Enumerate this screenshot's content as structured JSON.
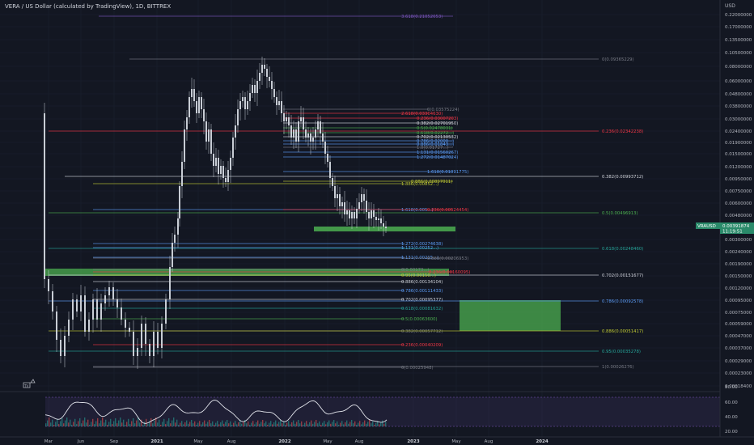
{
  "header": {
    "symbol_title": "VERA / US Dollar (calculated by TradingView), 1D, BITTREX",
    "currency": "USD",
    "ticker_badge": "VRAUSD",
    "last_price": "0.00391874",
    "countdown": "11:19:51",
    "tv_logo": "TV"
  },
  "colors": {
    "background": "#131722",
    "candle": "#c8cdd5",
    "rsi_line": "#e1e3ea",
    "rsi_band": "#7e57c2",
    "zone_green": "#4caf50",
    "price_badge": "#2a8a6a"
  },
  "price_axis": [
    "0.22000000",
    "0.17000000",
    "0.13500000",
    "0.10500000",
    "0.08000000",
    "0.06000000",
    "0.04800000",
    "0.03800000",
    "0.03000000",
    "0.02400000",
    "0.01900000",
    "0.01500000",
    "0.01200000",
    "0.00950000",
    "0.00750000",
    "0.00600000",
    "0.00480000",
    "0.00380000",
    "0.00300000",
    "0.00240000",
    "0.00190000",
    "0.00150000",
    "0.00120000",
    "0.00095000",
    "0.00075000",
    "0.00059000",
    "0.00047000",
    "0.00037000",
    "0.00029000",
    "0.00023000",
    "0.00018400"
  ],
  "rsi_axis": [
    "60.00",
    "40.00",
    "20.00"
  ],
  "rsi_label": "80.00",
  "time_axis": [
    "Mar",
    "Jun",
    "Sep",
    "2021",
    "May",
    "Aug",
    "2022",
    "May",
    "Aug",
    "2023",
    "May",
    "Aug",
    "2024"
  ],
  "fib_levels": [
    {
      "text": "3.618(0.21052053)",
      "color": "#7e57c2"
    },
    {
      "text": "0(0.09365229)",
      "color": "#787b86"
    },
    {
      "text": "0(0.03575224)",
      "color": "#787b86"
    },
    {
      "text": "2.618(0.03304630)",
      "color": "#f23645"
    },
    {
      "text": "0.236(0.03007203)",
      "color": "#f23645"
    },
    {
      "text": "0.382(0.02701950)",
      "color": "#d1d4dc"
    },
    {
      "text": "0.5(0.02478031)",
      "color": "#4caf50"
    },
    {
      "text": "0.618(0.02272...)",
      "color": "#4caf50"
    },
    {
      "text": "0.702(0.02130532)",
      "color": "#d1d4dc"
    },
    {
      "text": "0.786(0.02000...)",
      "color": "#5b9cf6"
    },
    {
      "text": "0.886(0.01843...)",
      "color": "#5b9cf6"
    },
    {
      "text": "1.0(0.01727...)",
      "color": "#787b86"
    },
    {
      "text": "1.131(0.01560267)",
      "color": "#5b9cf6"
    },
    {
      "text": "1.272(0.01487024)",
      "color": "#5b9cf6"
    },
    {
      "text": "0.236(0.02342238)",
      "color": "#f23645"
    },
    {
      "text": "1.618(0.01091775)",
      "color": "#5b9cf6"
    },
    {
      "text": "0.382(0.00993712)",
      "color": "#d1d4dc"
    },
    {
      "text": "1.886(0.00852...)",
      "color": "#c0ca33"
    },
    {
      "text": "0.886(0.00897011)",
      "color": "#c0ca33"
    },
    {
      "text": "1.618(0.005...)",
      "color": "#5b9cf6"
    },
    {
      "text": "0.236(0.00524454)",
      "color": "#f23645"
    },
    {
      "text": "0.5(0.00496913)",
      "color": "#4caf50"
    },
    {
      "text": "1.272(0.00274638)",
      "color": "#5b9cf6"
    },
    {
      "text": "1.131(0.00252...)",
      "color": "#5b9cf6"
    },
    {
      "text": "0.618(0.00248460)",
      "color": "#26a69a"
    },
    {
      "text": "1.131(0.00215...)",
      "color": "#5b9cf6"
    },
    {
      "text": "0.886(0.00206953)",
      "color": "#787b86"
    },
    {
      "text": "0(0.00173...)",
      "color": "#787b86"
    },
    {
      "text": "0.236(0.00160095)",
      "color": "#f23645"
    },
    {
      "text": "0.702(0.00151677)",
      "color": "#d1d4dc"
    },
    {
      "text": "0.95(0.00150...)",
      "color": "#c0ca33"
    },
    {
      "text": "0.886(0.00134104)",
      "color": "#d1d4dc"
    },
    {
      "text": "0.786(0.00111433)",
      "color": "#5b9cf6"
    },
    {
      "text": "0.702(0.00095377)",
      "color": "#d1d4dc"
    },
    {
      "text": "0.786(0.00092578)",
      "color": "#5b9cf6"
    },
    {
      "text": "0.618(0.00081632)",
      "color": "#26a69a"
    },
    {
      "text": "0.5(0.00063600)",
      "color": "#4caf50"
    },
    {
      "text": "0.382(0.00057712)",
      "color": "#787b86"
    },
    {
      "text": "0.886(0.00051417)",
      "color": "#c0ca33"
    },
    {
      "text": "0.236(0.00040209)",
      "color": "#f23645"
    },
    {
      "text": "0.95(0.00035278)",
      "color": "#26a69a"
    },
    {
      "text": "0(0.00025948)",
      "color": "#787b86"
    },
    {
      "text": "1(0.00026276)",
      "color": "#787b86"
    }
  ]
}
